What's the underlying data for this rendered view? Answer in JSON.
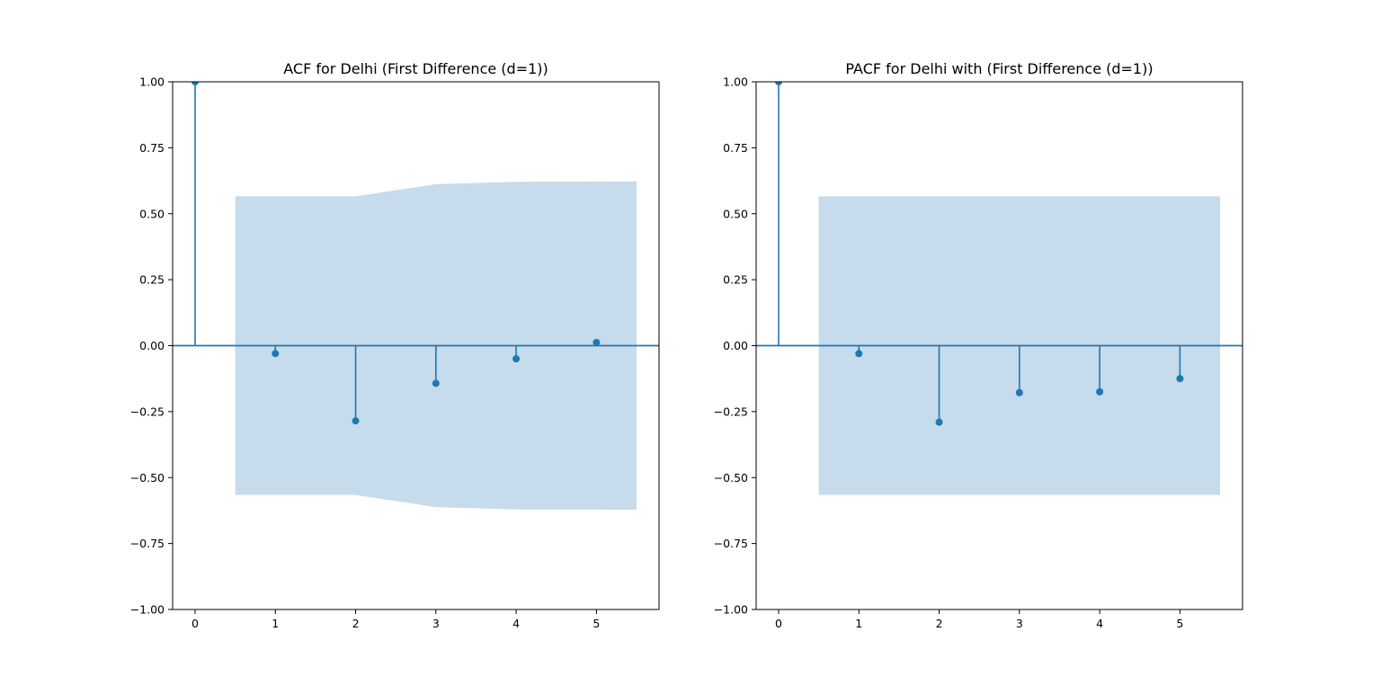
{
  "chart_data": [
    {
      "type": "stem",
      "title": "ACF for Delhi (First Difference (d=1))",
      "xlabel": "",
      "ylabel": "",
      "x": [
        0,
        1,
        2,
        3,
        4,
        5
      ],
      "values": [
        1.0,
        -0.03,
        -0.285,
        -0.143,
        -0.05,
        0.012
      ],
      "confidence_band": {
        "x": [
          0.5,
          2.0,
          3.0,
          4.0,
          5.5
        ],
        "upper": [
          0.566,
          0.566,
          0.612,
          0.621,
          0.622
        ],
        "lower": [
          -0.566,
          -0.566,
          -0.612,
          -0.621,
          -0.622
        ]
      },
      "xlim": [
        -0.28,
        5.78
      ],
      "ylim": [
        -1.0,
        1.0
      ],
      "xticks": [
        0,
        1,
        2,
        3,
        4,
        5
      ],
      "yticks": [
        -1.0,
        -0.75,
        -0.5,
        -0.25,
        0.0,
        0.25,
        0.5,
        0.75,
        1.0
      ],
      "ytick_labels": [
        "−1.00",
        "−0.75",
        "−0.50",
        "−0.25",
        "0.00",
        "0.25",
        "0.50",
        "0.75",
        "1.00"
      ],
      "grid": false,
      "legend": "none"
    },
    {
      "type": "stem",
      "title": "PACF for Delhi with (First Difference (d=1))",
      "xlabel": "",
      "ylabel": "",
      "x": [
        0,
        1,
        2,
        3,
        4,
        5
      ],
      "values": [
        1.0,
        -0.03,
        -0.29,
        -0.178,
        -0.175,
        -0.125
      ],
      "confidence_band": {
        "x": [
          0.5,
          5.5
        ],
        "upper": [
          0.566,
          0.566
        ],
        "lower": [
          -0.566,
          -0.566
        ]
      },
      "xlim": [
        -0.28,
        5.78
      ],
      "ylim": [
        -1.0,
        1.0
      ],
      "xticks": [
        0,
        1,
        2,
        3,
        4,
        5
      ],
      "yticks": [
        -1.0,
        -0.75,
        -0.5,
        -0.25,
        0.0,
        0.25,
        0.5,
        0.75,
        1.0
      ],
      "ytick_labels": [
        "−1.00",
        "−0.75",
        "−0.50",
        "−0.25",
        "0.00",
        "0.25",
        "0.50",
        "0.75",
        "1.00"
      ],
      "grid": false,
      "legend": "none"
    }
  ],
  "colors": {
    "stem": "#1f77b4",
    "band": "#c6dbec",
    "axes": "#000000",
    "background": "#ffffff"
  }
}
